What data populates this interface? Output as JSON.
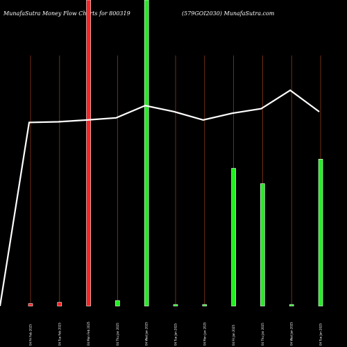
{
  "chart_data": {
    "type": "bar",
    "title_left": "MunafaSutra  Money Flow  Charts for 800319",
    "title_right": "(579GOI2030) MunafaSutra.com",
    "categories": [
      "04 Fri Feb 2025",
      "04 Tue Feb 2025",
      "04 Mon Feb 2025",
      "04 Thu Jan 2025",
      "04 Wed Jan 2025",
      "04 Tue Jan 2025",
      "04 Mon Jan 2025",
      "04 Fri Jan 2025",
      "04 Thu Jan 2025",
      "04 Wed Jan 2025",
      "04 Tue Jan 2025"
    ],
    "bars": [
      {
        "value": 0.8,
        "color": "#ff2222"
      },
      {
        "value": 1.2,
        "color": "#ff2222"
      },
      {
        "value": 100,
        "color": "#ff2222"
      },
      {
        "value": 1.8,
        "color": "#22ee22"
      },
      {
        "value": 100,
        "color": "#22ee22"
      },
      {
        "value": 0.5,
        "color": "#22ee22"
      },
      {
        "value": 0.5,
        "color": "#22ee22"
      },
      {
        "value": 45,
        "color": "#22ee22"
      },
      {
        "value": 40,
        "color": "#22ee22"
      },
      {
        "value": 0.5,
        "color": "#22ee22"
      },
      {
        "value": 48,
        "color": "#22ee22"
      }
    ],
    "line": {
      "color": "#ffffff",
      "values": [
        60,
        60.2,
        60.8,
        61.5,
        65.5,
        63.5,
        60.8,
        63,
        64.5,
        70.5,
        63.5
      ],
      "start_value": 0
    },
    "ylim": [
      0,
      100
    ],
    "grid": false,
    "colors": {
      "background": "#000000",
      "gridline": "#8b3a1a",
      "text": "#ffffff"
    }
  }
}
